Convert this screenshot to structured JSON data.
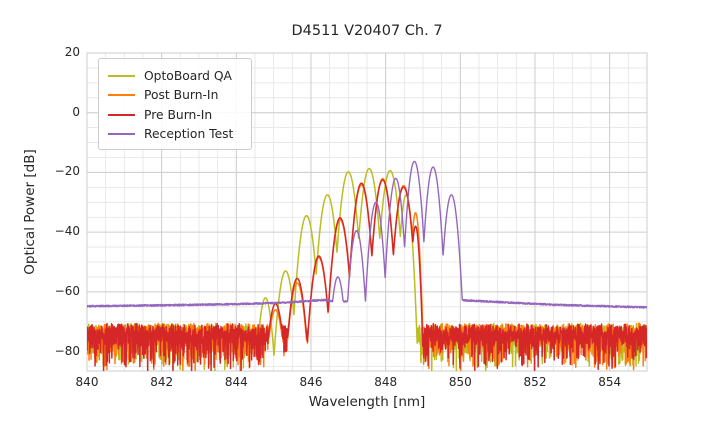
{
  "figure": {
    "title": "D4511 V20407 Ch. 7",
    "background_color": "#ffffff",
    "text_color": "#262626"
  },
  "axes": {
    "xlabel": "Wavelength [nm]",
    "ylabel": "Optical Power [dB]",
    "xlim": [
      840,
      855
    ],
    "ylim": [
      -86.5,
      20
    ],
    "xtick_values": [
      840,
      842,
      844,
      846,
      848,
      850,
      852,
      854
    ],
    "xtick_labels": [
      "840",
      "842",
      "844",
      "846",
      "848",
      "850",
      "852",
      "854"
    ],
    "ytick_values": [
      20,
      0,
      -20,
      -40,
      -60,
      -80
    ],
    "ytick_labels": [
      "20",
      "0",
      "−20",
      "−40",
      "−60",
      "−80"
    ],
    "grid": {
      "major_color": "#cccccc",
      "minor_color": "#e4e4e4",
      "x_minor_step": 0.5,
      "y_minor_step": 5,
      "border_color": "#cccccc"
    }
  },
  "legend": {
    "position": "upper left",
    "items": [
      {
        "label": "OptoBoard QA",
        "color": "#bcbd22"
      },
      {
        "label": "Post Burn-In",
        "color": "#ff7f0e"
      },
      {
        "label": "Pre Burn-In",
        "color": "#d62728"
      },
      {
        "label": "Reception Test",
        "color": "#9467bd"
      }
    ]
  },
  "chart_data": {
    "type": "line",
    "title": "D4511 V20407 Ch. 7",
    "xlabel": "Wavelength [nm]",
    "ylabel": "Optical Power [dB]",
    "xlim": [
      840,
      855
    ],
    "ylim": [
      -86.5,
      20
    ],
    "legend_position": "upper left",
    "grid": true,
    "description": "Optical spectra: lobed signal peaks 845-850 nm; OptoBoard QA / Post Burn-In / Pre Burn-In share a spiky noise floor near -76 dB; Reception Test has a smooth floor near -64 dB.",
    "series": [
      {
        "name": "OptoBoard QA",
        "color": "#bcbd22",
        "seed": 11,
        "k": 23,
        "line_width": 1.5,
        "lobes": [
          [
            844.78,
            -62,
            0.25
          ],
          [
            845.32,
            -53,
            0.28
          ],
          [
            845.88,
            -34.5,
            0.28
          ],
          [
            846.44,
            -27.5,
            0.28
          ],
          [
            847.0,
            -19.8,
            0.28
          ],
          [
            847.56,
            -18.7,
            0.28
          ],
          [
            848.12,
            -19.4,
            0.28
          ],
          [
            848.55,
            -27.5,
            0.2
          ]
        ],
        "noise": {
          "ranges": [
            [
              840,
              844.82
            ],
            [
              848.74,
              855
            ]
          ],
          "base": -75.5
        }
      },
      {
        "name": "Post Burn-In",
        "color": "#ff7f0e",
        "seed": 22,
        "k": 24,
        "line_width": 1.5,
        "lobes": [
          [
            845.05,
            -66,
            0.28
          ],
          [
            845.63,
            -57,
            0.28
          ],
          [
            846.21,
            -48.5,
            0.28
          ],
          [
            846.78,
            -35.8,
            0.28
          ],
          [
            847.35,
            -24.2,
            0.28
          ],
          [
            847.92,
            -22.1,
            0.28
          ],
          [
            848.48,
            -24.4,
            0.28
          ],
          [
            848.8,
            -33.5,
            0.15
          ]
        ],
        "noise": {
          "ranges": [
            [
              840,
              845.9
            ],
            [
              849.02,
              855
            ]
          ],
          "base": -75.5
        }
      },
      {
        "name": "Pre Burn-In",
        "color": "#d62728",
        "seed": 33,
        "k": 24,
        "line_width": 1.5,
        "lobes": [
          [
            845.05,
            -64,
            0.28
          ],
          [
            845.63,
            -55.5,
            0.28
          ],
          [
            846.21,
            -48,
            0.28
          ],
          [
            846.78,
            -35.2,
            0.28
          ],
          [
            847.35,
            -23.6,
            0.28
          ],
          [
            847.92,
            -22.5,
            0.28
          ],
          [
            848.48,
            -24.9,
            0.28
          ],
          [
            848.8,
            -38,
            0.15
          ]
        ],
        "noise": {
          "ranges": [
            [
              840,
              845.9
            ],
            [
              848.98,
              855
            ]
          ],
          "base": -75.5
        }
      },
      {
        "name": "Reception Test",
        "color": "#9467bd",
        "seed": 44,
        "k": 26,
        "line_width": 1.4,
        "lobes": [
          [
            846.72,
            -55,
            0.25
          ],
          [
            847.22,
            -39.5,
            0.25
          ],
          [
            847.74,
            -30,
            0.25
          ],
          [
            848.27,
            -22,
            0.25
          ],
          [
            848.77,
            -16.3,
            0.25
          ],
          [
            849.27,
            -18.2,
            0.25
          ],
          [
            849.76,
            -27.5,
            0.25
          ]
        ],
        "baseline": [
          [
            840,
            -64.8
          ],
          [
            842,
            -64.5
          ],
          [
            844,
            -64.1
          ],
          [
            845.3,
            -63.6
          ],
          [
            846.0,
            -63.0
          ],
          [
            846.35,
            -62.7
          ],
          [
            846.6,
            -63.2
          ],
          [
            849.9,
            -62.8
          ],
          [
            850.08,
            -62.8
          ],
          [
            851,
            -63.4
          ],
          [
            852.5,
            -64.3
          ],
          [
            855,
            -65.2
          ]
        ],
        "jitter": 0.28
      }
    ]
  }
}
